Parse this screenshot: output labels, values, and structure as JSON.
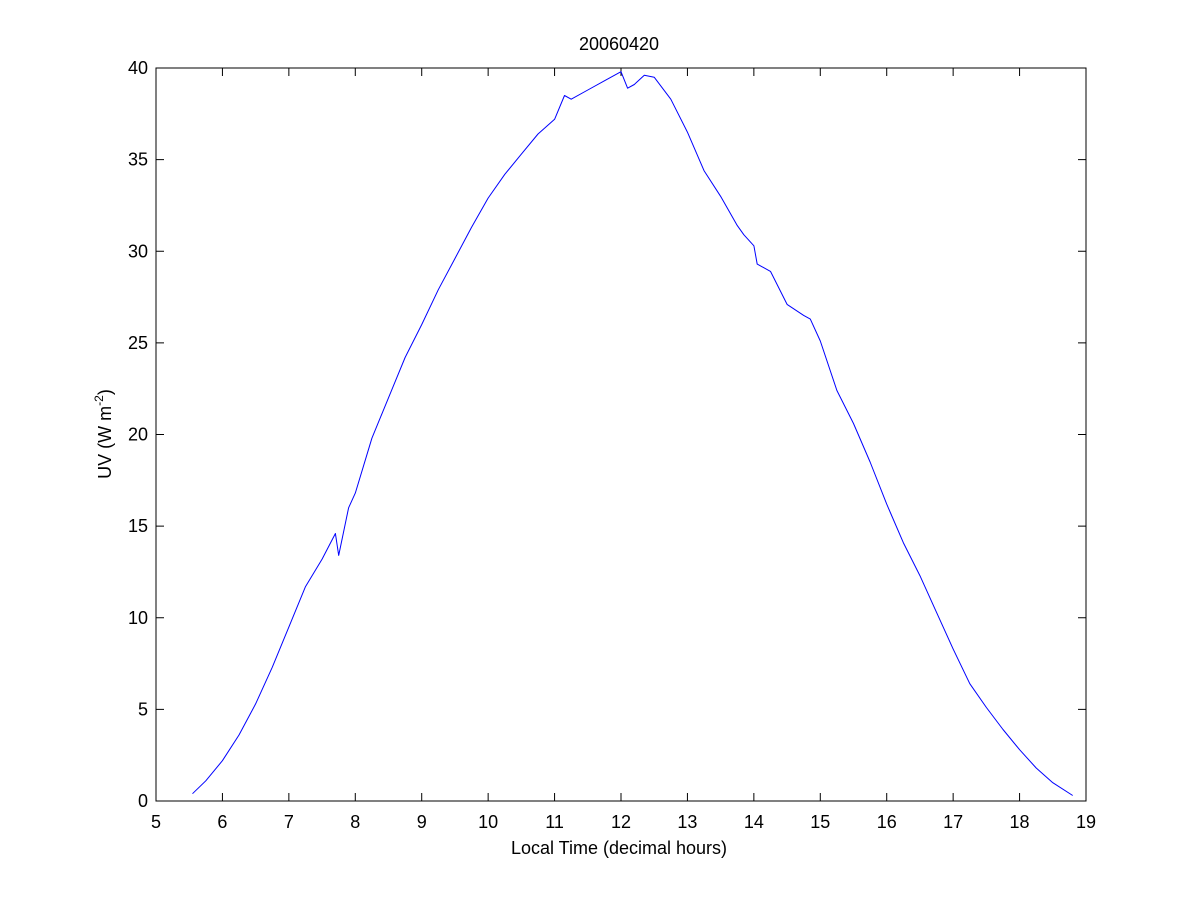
{
  "chart_data": {
    "type": "line",
    "title": "20060420",
    "xlabel": "Local Time (decimal hours)",
    "ylabel_main": "UV (W m",
    "ylabel_sup": "-2",
    "ylabel_close": ")",
    "xlim": [
      5,
      19
    ],
    "ylim": [
      0,
      40
    ],
    "xticks": [
      5,
      6,
      7,
      8,
      9,
      10,
      11,
      12,
      13,
      14,
      15,
      16,
      17,
      18,
      19
    ],
    "yticks": [
      0,
      5,
      10,
      15,
      20,
      25,
      30,
      35,
      40
    ],
    "grid": false,
    "colors": {
      "line": "#0000ff",
      "axes": "#000000",
      "background": "#ffffff"
    },
    "series": [
      {
        "x": [
          5.55,
          5.75,
          6.0,
          6.25,
          6.5,
          6.75,
          7.0,
          7.25,
          7.5,
          7.7,
          7.75,
          7.9,
          8.0,
          8.25,
          8.5,
          8.75,
          9.0,
          9.25,
          9.5,
          9.75,
          10.0,
          10.25,
          10.5,
          10.75,
          11.0,
          11.15,
          11.25,
          11.5,
          11.75,
          11.9,
          12.0,
          12.1,
          12.2,
          12.35,
          12.5,
          12.75,
          13.0,
          13.25,
          13.5,
          13.75,
          13.85,
          14.0,
          14.05,
          14.25,
          14.5,
          14.75,
          14.85,
          15.0,
          15.25,
          15.5,
          15.75,
          16.0,
          16.25,
          16.5,
          16.75,
          17.0,
          17.25,
          17.5,
          17.75,
          18.0,
          18.25,
          18.5,
          18.8
        ],
        "y": [
          0.4,
          1.1,
          2.2,
          3.6,
          5.3,
          7.3,
          9.5,
          11.7,
          13.2,
          14.6,
          13.4,
          16.0,
          16.8,
          19.8,
          22.0,
          24.2,
          26.0,
          27.9,
          29.6,
          31.3,
          32.9,
          34.2,
          35.3,
          36.4,
          37.2,
          38.5,
          38.3,
          38.8,
          39.3,
          39.6,
          39.8,
          38.9,
          39.1,
          39.6,
          39.5,
          38.3,
          36.5,
          34.4,
          33.0,
          31.4,
          30.9,
          30.3,
          29.3,
          28.9,
          27.1,
          26.5,
          26.3,
          25.1,
          22.4,
          20.6,
          18.5,
          16.2,
          14.1,
          12.3,
          10.3,
          8.3,
          6.4,
          5.1,
          3.9,
          2.8,
          1.8,
          1.0,
          0.3
        ]
      }
    ]
  }
}
